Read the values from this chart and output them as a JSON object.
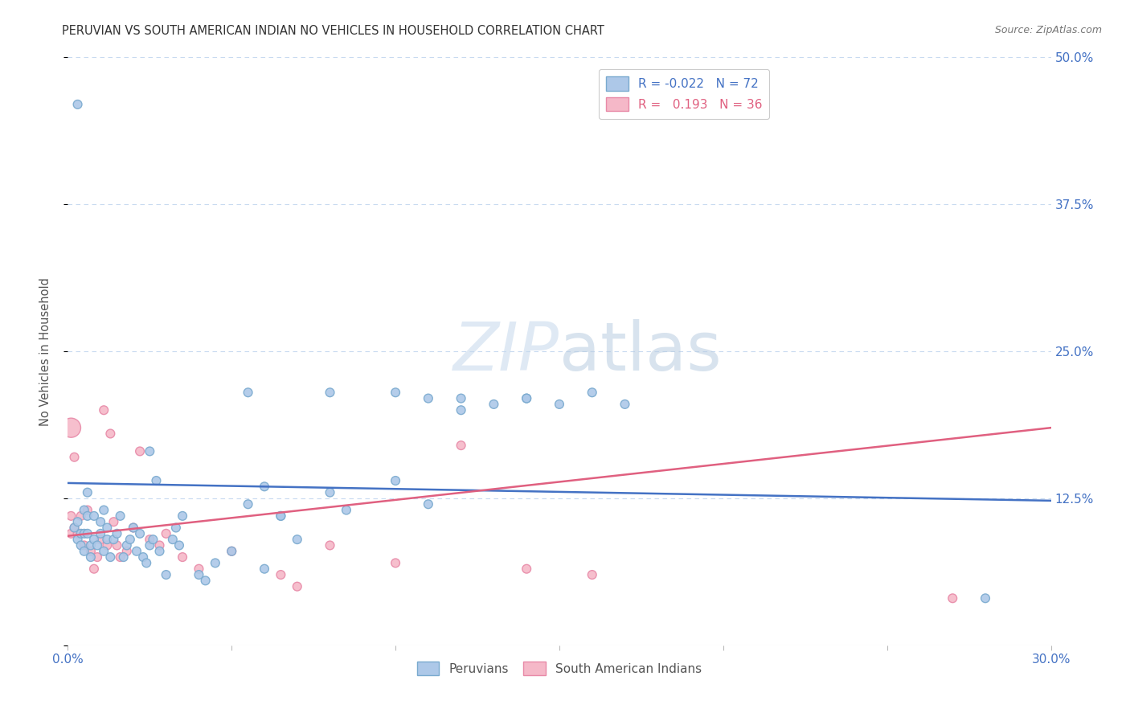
{
  "title": "PERUVIAN VS SOUTH AMERICAN INDIAN NO VEHICLES IN HOUSEHOLD CORRELATION CHART",
  "source": "Source: ZipAtlas.com",
  "ylabel": "No Vehicles in Household",
  "xlim": [
    0.0,
    0.3
  ],
  "ylim": [
    0.0,
    0.5
  ],
  "xticks": [
    0.0,
    0.05,
    0.1,
    0.15,
    0.2,
    0.25,
    0.3
  ],
  "xtick_labels": [
    "0.0%",
    "",
    "",
    "",
    "",
    "",
    "30.0%"
  ],
  "yticks": [
    0.0,
    0.125,
    0.25,
    0.375,
    0.5
  ],
  "ytick_labels_right": [
    "",
    "12.5%",
    "25.0%",
    "37.5%",
    "50.0%"
  ],
  "legend_r_blue": "-0.022",
  "legend_n_blue": "72",
  "legend_r_pink": "0.193",
  "legend_n_pink": "36",
  "blue_face": "#adc8e8",
  "blue_edge": "#7aaacf",
  "pink_face": "#f5b8c8",
  "pink_edge": "#e88aa8",
  "line_blue": "#4472c4",
  "line_pink": "#e06080",
  "tick_color": "#4472c4",
  "watermark": "ZIPatlas",
  "blue_line_x": [
    0.0,
    0.3
  ],
  "blue_line_y": [
    0.138,
    0.123
  ],
  "pink_line_x": [
    0.0,
    0.3
  ],
  "pink_line_y": [
    0.093,
    0.185
  ],
  "blue_x": [
    0.002,
    0.003,
    0.003,
    0.004,
    0.004,
    0.005,
    0.005,
    0.005,
    0.006,
    0.006,
    0.006,
    0.007,
    0.007,
    0.008,
    0.008,
    0.009,
    0.01,
    0.01,
    0.011,
    0.011,
    0.012,
    0.012,
    0.013,
    0.014,
    0.015,
    0.016,
    0.017,
    0.018,
    0.019,
    0.02,
    0.021,
    0.022,
    0.023,
    0.024,
    0.025,
    0.026,
    0.027,
    0.028,
    0.03,
    0.032,
    0.033,
    0.034,
    0.035,
    0.04,
    0.042,
    0.045,
    0.05,
    0.055,
    0.06,
    0.065,
    0.07,
    0.08,
    0.085,
    0.1,
    0.11,
    0.12,
    0.13,
    0.14,
    0.15,
    0.16,
    0.003,
    0.025,
    0.055,
    0.06,
    0.065,
    0.08,
    0.1,
    0.11,
    0.12,
    0.14,
    0.17,
    0.28
  ],
  "blue_y": [
    0.1,
    0.105,
    0.09,
    0.095,
    0.085,
    0.115,
    0.095,
    0.08,
    0.13,
    0.095,
    0.11,
    0.085,
    0.075,
    0.11,
    0.09,
    0.085,
    0.105,
    0.095,
    0.08,
    0.115,
    0.09,
    0.1,
    0.075,
    0.09,
    0.095,
    0.11,
    0.075,
    0.085,
    0.09,
    0.1,
    0.08,
    0.095,
    0.075,
    0.07,
    0.085,
    0.09,
    0.14,
    0.08,
    0.06,
    0.09,
    0.1,
    0.085,
    0.11,
    0.06,
    0.055,
    0.07,
    0.08,
    0.12,
    0.065,
    0.11,
    0.09,
    0.13,
    0.115,
    0.14,
    0.12,
    0.21,
    0.205,
    0.21,
    0.205,
    0.215,
    0.46,
    0.165,
    0.215,
    0.135,
    0.11,
    0.215,
    0.215,
    0.21,
    0.2,
    0.21,
    0.205,
    0.04
  ],
  "blue_sizes": [
    60,
    60,
    60,
    60,
    60,
    60,
    60,
    60,
    60,
    60,
    60,
    60,
    60,
    60,
    60,
    60,
    60,
    60,
    60,
    60,
    60,
    60,
    60,
    60,
    60,
    60,
    60,
    60,
    60,
    60,
    60,
    60,
    60,
    60,
    60,
    60,
    60,
    60,
    60,
    60,
    60,
    60,
    60,
    60,
    60,
    60,
    60,
    60,
    60,
    60,
    60,
    60,
    60,
    60,
    60,
    60,
    60,
    60,
    60,
    60,
    60,
    60,
    60,
    60,
    60,
    60,
    60,
    60,
    60,
    60,
    60,
    60
  ],
  "pink_x": [
    0.001,
    0.002,
    0.003,
    0.004,
    0.005,
    0.006,
    0.007,
    0.008,
    0.009,
    0.01,
    0.011,
    0.012,
    0.013,
    0.014,
    0.015,
    0.016,
    0.018,
    0.02,
    0.022,
    0.025,
    0.028,
    0.03,
    0.035,
    0.04,
    0.05,
    0.065,
    0.07,
    0.08,
    0.1,
    0.12,
    0.14,
    0.16,
    0.27,
    0.001,
    0.001,
    0.002
  ],
  "pink_y": [
    0.095,
    0.1,
    0.095,
    0.11,
    0.085,
    0.115,
    0.08,
    0.065,
    0.075,
    0.09,
    0.2,
    0.085,
    0.18,
    0.105,
    0.085,
    0.075,
    0.08,
    0.1,
    0.165,
    0.09,
    0.085,
    0.095,
    0.075,
    0.065,
    0.08,
    0.06,
    0.05,
    0.085,
    0.07,
    0.17,
    0.065,
    0.06,
    0.04,
    0.185,
    0.11,
    0.16
  ],
  "pink_sizes": [
    60,
    60,
    60,
    60,
    60,
    60,
    60,
    60,
    60,
    60,
    60,
    60,
    60,
    60,
    60,
    60,
    60,
    60,
    60,
    60,
    60,
    60,
    60,
    60,
    60,
    60,
    60,
    60,
    60,
    60,
    60,
    60,
    60,
    300,
    60,
    60
  ]
}
